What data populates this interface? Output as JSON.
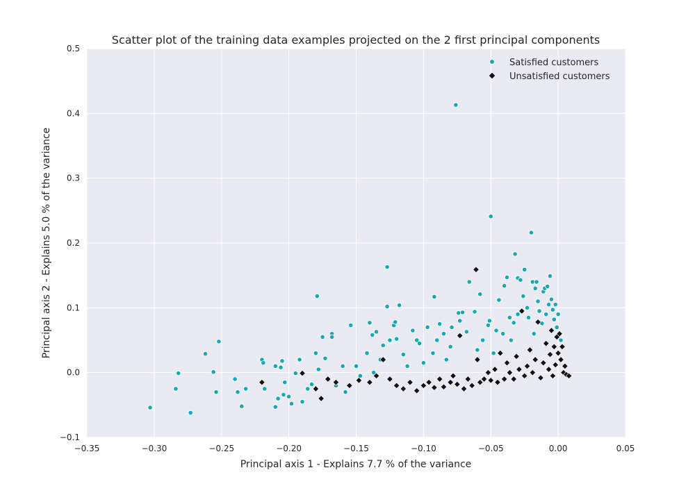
{
  "chart_data": {
    "type": "scatter",
    "title": "Scatter plot of the training data examples projected on the 2 first principal components",
    "xlabel": "Principal axis 1 - Explains 7.7 % of the variance",
    "ylabel": "Principal axis 2 - Explains 5.0 % of the variance",
    "xlim": [
      -0.35,
      0.05
    ],
    "ylim": [
      -0.1,
      0.5
    ],
    "xticks": [
      "−0.35",
      "−0.30",
      "−0.25",
      "−0.20",
      "−0.15",
      "−0.10",
      "−0.05",
      "0.00",
      "0.05"
    ],
    "yticks": [
      "−0.1",
      "0.0",
      "0.1",
      "0.2",
      "0.3",
      "0.4",
      "0.5"
    ],
    "grid": true,
    "legend_position": "top-right",
    "background_color": "#eaeaf2",
    "series": [
      {
        "name": "Satisfied customers",
        "marker": "circle",
        "color": "#17a8b5",
        "points": [
          [
            -0.303,
            -0.054
          ],
          [
            -0.282,
            -0.001
          ],
          [
            -0.284,
            -0.025
          ],
          [
            -0.273,
            -0.062
          ],
          [
            -0.262,
            0.029
          ],
          [
            -0.256,
            0.001
          ],
          [
            -0.252,
            0.048
          ],
          [
            -0.254,
            -0.03
          ],
          [
            -0.24,
            -0.01
          ],
          [
            -0.238,
            -0.03
          ],
          [
            -0.235,
            -0.052
          ],
          [
            -0.232,
            -0.025
          ],
          [
            -0.22,
            0.02
          ],
          [
            -0.219,
            0.015
          ],
          [
            -0.218,
            -0.025
          ],
          [
            -0.21,
            0.01
          ],
          [
            -0.206,
            0.008
          ],
          [
            -0.205,
            0.018
          ],
          [
            -0.204,
            -0.034
          ],
          [
            -0.21,
            -0.053
          ],
          [
            -0.208,
            -0.04
          ],
          [
            -0.203,
            -0.015
          ],
          [
            -0.198,
            -0.048
          ],
          [
            -0.2,
            -0.037
          ],
          [
            -0.195,
            -0.001
          ],
          [
            -0.192,
            0.02
          ],
          [
            -0.19,
            -0.045
          ],
          [
            -0.186,
            -0.025
          ],
          [
            -0.183,
            -0.018
          ],
          [
            -0.18,
            0.03
          ],
          [
            -0.179,
            0.118
          ],
          [
            -0.178,
            0.005
          ],
          [
            -0.175,
            0.055
          ],
          [
            -0.173,
            0.022
          ],
          [
            -0.168,
            0.06
          ],
          [
            -0.168,
            0.055
          ],
          [
            -0.165,
            -0.02
          ],
          [
            -0.16,
            0.01
          ],
          [
            -0.158,
            -0.03
          ],
          [
            -0.154,
            0.073
          ],
          [
            -0.15,
            0.01
          ],
          [
            -0.147,
            -0.005
          ],
          [
            -0.142,
            0.03
          ],
          [
            -0.14,
            0.077
          ],
          [
            -0.138,
            0.058
          ],
          [
            -0.137,
            0.0
          ],
          [
            -0.135,
            0.063
          ],
          [
            -0.132,
            0.02
          ],
          [
            -0.13,
            0.042
          ],
          [
            -0.127,
            0.163
          ],
          [
            -0.127,
            0.102
          ],
          [
            -0.125,
            0.05
          ],
          [
            -0.122,
            0.073
          ],
          [
            -0.121,
            0.078
          ],
          [
            -0.12,
            0.052
          ],
          [
            -0.118,
            0.104
          ],
          [
            -0.115,
            0.028
          ],
          [
            -0.112,
            0.01
          ],
          [
            -0.108,
            0.065
          ],
          [
            -0.105,
            0.05
          ],
          [
            -0.103,
            0.045
          ],
          [
            -0.1,
            0.015
          ],
          [
            -0.097,
            0.07
          ],
          [
            -0.093,
            0.03
          ],
          [
            -0.092,
            0.117
          ],
          [
            -0.09,
            0.05
          ],
          [
            -0.088,
            0.075
          ],
          [
            -0.085,
            0.06
          ],
          [
            -0.083,
            0.02
          ],
          [
            -0.08,
            0.04
          ],
          [
            -0.079,
            0.07
          ],
          [
            -0.076,
            0.413
          ],
          [
            -0.074,
            0.092
          ],
          [
            -0.073,
            0.08
          ],
          [
            -0.071,
            0.093
          ],
          [
            -0.068,
            0.063
          ],
          [
            -0.066,
            0.14
          ],
          [
            -0.062,
            0.094
          ],
          [
            -0.06,
            0.035
          ],
          [
            -0.058,
            0.121
          ],
          [
            -0.056,
            0.05
          ],
          [
            -0.052,
            0.073
          ],
          [
            -0.051,
            0.08
          ],
          [
            -0.05,
            0.241
          ],
          [
            -0.048,
            0.03
          ],
          [
            -0.046,
            0.065
          ],
          [
            -0.044,
            0.112
          ],
          [
            -0.041,
            0.06
          ],
          [
            -0.04,
            0.134
          ],
          [
            -0.038,
            0.147
          ],
          [
            -0.036,
            0.085
          ],
          [
            -0.035,
            0.05
          ],
          [
            -0.033,
            0.077
          ],
          [
            -0.032,
            0.183
          ],
          [
            -0.03,
            0.09
          ],
          [
            -0.03,
            0.146
          ],
          [
            -0.028,
            0.143
          ],
          [
            -0.026,
            0.118
          ],
          [
            -0.025,
            0.159
          ],
          [
            -0.023,
            0.1
          ],
          [
            -0.022,
            0.085
          ],
          [
            -0.02,
            0.216
          ],
          [
            -0.019,
            0.14
          ],
          [
            -0.018,
            0.06
          ],
          [
            -0.017,
            0.13
          ],
          [
            -0.016,
            0.14
          ],
          [
            -0.015,
            0.11
          ],
          [
            -0.014,
            0.095
          ],
          [
            -0.012,
            0.076
          ],
          [
            -0.011,
            0.125
          ],
          [
            -0.01,
            0.13
          ],
          [
            -0.009,
            0.09
          ],
          [
            -0.008,
            0.133
          ],
          [
            -0.007,
            0.105
          ],
          [
            -0.006,
            0.149
          ],
          [
            -0.005,
            0.113
          ],
          [
            -0.004,
            0.097
          ],
          [
            -0.003,
            0.082
          ],
          [
            -0.002,
            0.105
          ],
          [
            -0.001,
            0.07
          ],
          [
            0.0,
            0.09
          ],
          [
            0.001,
            0.06
          ],
          [
            0.002,
            0.05
          ]
        ]
      },
      {
        "name": "Unsatisfied customers",
        "marker": "diamond",
        "color": "#111111",
        "points": [
          [
            -0.22,
            -0.015
          ],
          [
            -0.19,
            -0.001
          ],
          [
            -0.18,
            -0.025
          ],
          [
            -0.176,
            -0.04
          ],
          [
            -0.171,
            -0.01
          ],
          [
            -0.165,
            -0.015
          ],
          [
            -0.155,
            -0.02
          ],
          [
            -0.148,
            -0.012
          ],
          [
            -0.14,
            -0.015
          ],
          [
            -0.135,
            -0.005
          ],
          [
            -0.13,
            0.02
          ],
          [
            -0.125,
            -0.01
          ],
          [
            -0.12,
            -0.02
          ],
          [
            -0.115,
            -0.025
          ],
          [
            -0.11,
            -0.015
          ],
          [
            -0.105,
            -0.028
          ],
          [
            -0.1,
            -0.02
          ],
          [
            -0.096,
            -0.015
          ],
          [
            -0.092,
            -0.023
          ],
          [
            -0.088,
            -0.01
          ],
          [
            -0.085,
            -0.022
          ],
          [
            -0.08,
            -0.015
          ],
          [
            -0.078,
            -0.005
          ],
          [
            -0.075,
            -0.018
          ],
          [
            -0.073,
            0.057
          ],
          [
            -0.07,
            -0.025
          ],
          [
            -0.067,
            -0.01
          ],
          [
            -0.064,
            -0.02
          ],
          [
            -0.061,
            0.159
          ],
          [
            -0.06,
            0.02
          ],
          [
            -0.058,
            -0.015
          ],
          [
            -0.055,
            -0.01
          ],
          [
            -0.052,
            0.0
          ],
          [
            -0.05,
            -0.012
          ],
          [
            -0.047,
            0.005
          ],
          [
            -0.045,
            -0.015
          ],
          [
            -0.043,
            0.03
          ],
          [
            -0.04,
            -0.01
          ],
          [
            -0.038,
            0.015
          ],
          [
            -0.036,
            0.0
          ],
          [
            -0.033,
            -0.01
          ],
          [
            -0.031,
            0.025
          ],
          [
            -0.029,
            0.005
          ],
          [
            -0.027,
            0.095
          ],
          [
            -0.025,
            -0.005
          ],
          [
            -0.023,
            0.01
          ],
          [
            -0.021,
            0.035
          ],
          [
            -0.019,
            0.0
          ],
          [
            -0.017,
            0.02
          ],
          [
            -0.015,
            0.078
          ],
          [
            -0.013,
            -0.008
          ],
          [
            -0.011,
            0.015
          ],
          [
            -0.009,
            0.045
          ],
          [
            -0.007,
            0.005
          ],
          [
            -0.006,
            0.028
          ],
          [
            -0.005,
            0.065
          ],
          [
            -0.004,
            -0.005
          ],
          [
            -0.003,
            0.04
          ],
          [
            -0.002,
            0.012
          ],
          [
            -0.001,
            0.055
          ],
          [
            0.0,
            0.03
          ],
          [
            0.001,
            0.06
          ],
          [
            0.002,
            0.02
          ],
          [
            0.003,
            0.04
          ],
          [
            0.004,
            0.0
          ],
          [
            0.005,
            0.01
          ],
          [
            0.006,
            -0.003
          ],
          [
            0.008,
            -0.005
          ]
        ]
      }
    ]
  }
}
